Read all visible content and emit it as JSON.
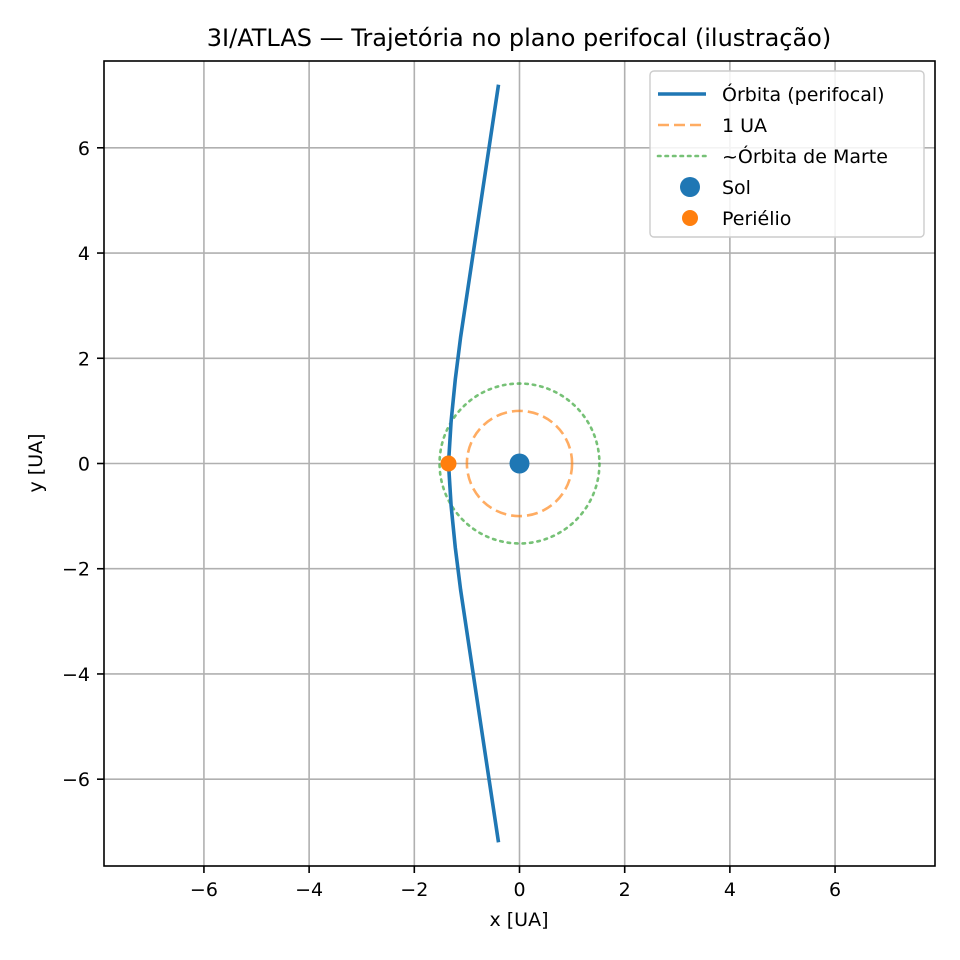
{
  "chart_data": {
    "type": "line",
    "title": "3I/ATLAS — Trajetória no plano perifocal (ilustração)",
    "xlabel": "x [UA]",
    "ylabel": "y [UA]",
    "xlim": [
      -7.9,
      7.9
    ],
    "ylim": [
      -7.65,
      7.65
    ],
    "xticks": [
      -6,
      -4,
      -2,
      0,
      2,
      4,
      6
    ],
    "yticks": [
      -6,
      -4,
      -2,
      0,
      2,
      4,
      6
    ],
    "xtick_labels": [
      "−6",
      "−4",
      "−2",
      "0",
      "2",
      "4",
      "6"
    ],
    "ytick_labels": [
      "−6",
      "−4",
      "−2",
      "0",
      "2",
      "4",
      "6"
    ],
    "grid": true,
    "legend_position": "top-right",
    "series": [
      {
        "name": "Órbita (perifocal)",
        "kind": "line",
        "style": "solid",
        "color": "#1f77b4",
        "points": [
          [
            -0.4,
            -7.2
          ],
          [
            -0.55,
            -6.2
          ],
          [
            -0.7,
            -5.2
          ],
          [
            -0.85,
            -4.2
          ],
          [
            -1.0,
            -3.2
          ],
          [
            -1.12,
            -2.4
          ],
          [
            -1.22,
            -1.6
          ],
          [
            -1.3,
            -0.8
          ],
          [
            -1.35,
            0.0
          ],
          [
            -1.3,
            0.8
          ],
          [
            -1.22,
            1.6
          ],
          [
            -1.12,
            2.4
          ],
          [
            -1.0,
            3.2
          ],
          [
            -0.85,
            4.2
          ],
          [
            -0.7,
            5.2
          ],
          [
            -0.55,
            6.2
          ],
          [
            -0.4,
            7.2
          ]
        ]
      },
      {
        "name": "1 UA",
        "kind": "circle",
        "style": "dashed",
        "color": "#ff7f0e",
        "center": [
          0,
          0
        ],
        "radius": 1.0
      },
      {
        "name": "~Órbita de Marte",
        "kind": "circle",
        "style": "dotted",
        "color": "#2ca02c",
        "center": [
          0,
          0
        ],
        "radius": 1.52
      },
      {
        "name": "Sol",
        "kind": "point",
        "color": "#1f77b4",
        "point": [
          0,
          0
        ]
      },
      {
        "name": "Periélio",
        "kind": "point",
        "color": "#ff7f0e",
        "point": [
          -1.35,
          0
        ]
      }
    ]
  }
}
